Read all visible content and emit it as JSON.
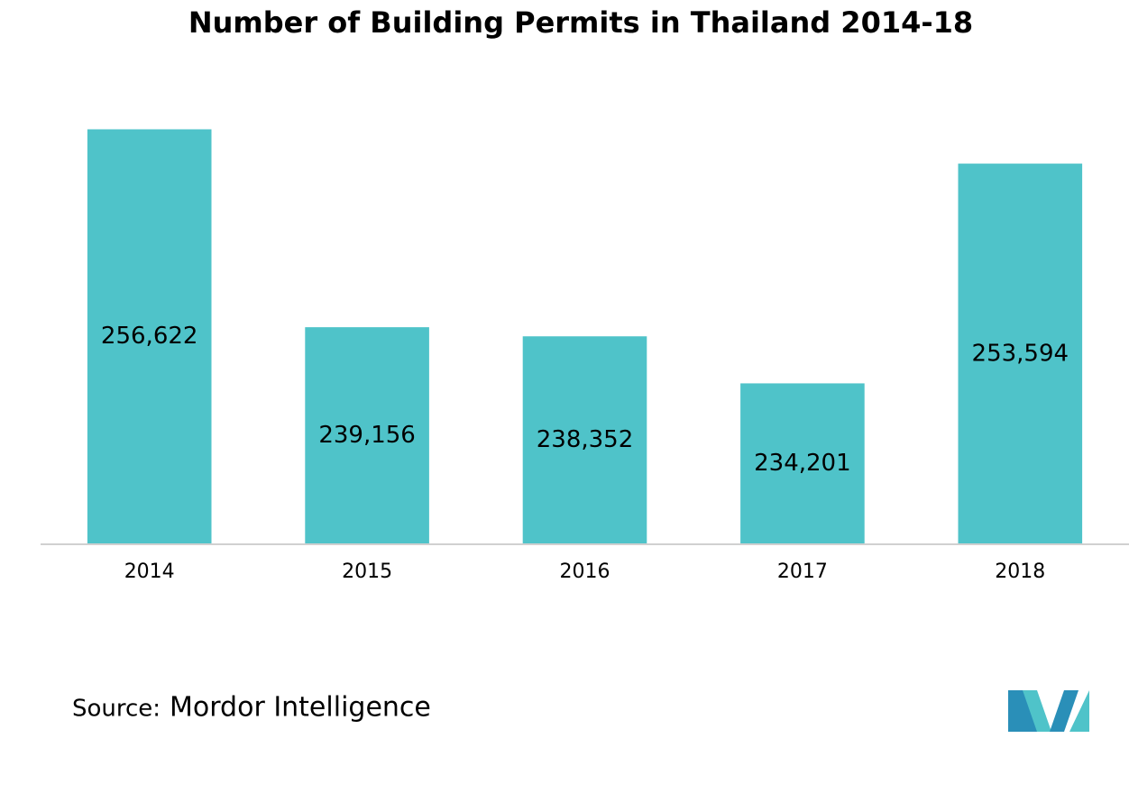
{
  "chart_data": {
    "type": "bar",
    "title": "Number of Building Permits in Thailand 2014-18",
    "categories": [
      "2014",
      "2015",
      "2016",
      "2017",
      "2018"
    ],
    "values": [
      256622,
      239156,
      238352,
      234201,
      253594
    ],
    "value_labels": [
      "256,622",
      "239,156",
      "238,352",
      "234,201",
      "253,594"
    ],
    "color": "#4fc3c9",
    "ylim": [
      220000,
      260000
    ],
    "grid": false,
    "source_label": "Source:",
    "source": "Mordor Intelligence"
  }
}
